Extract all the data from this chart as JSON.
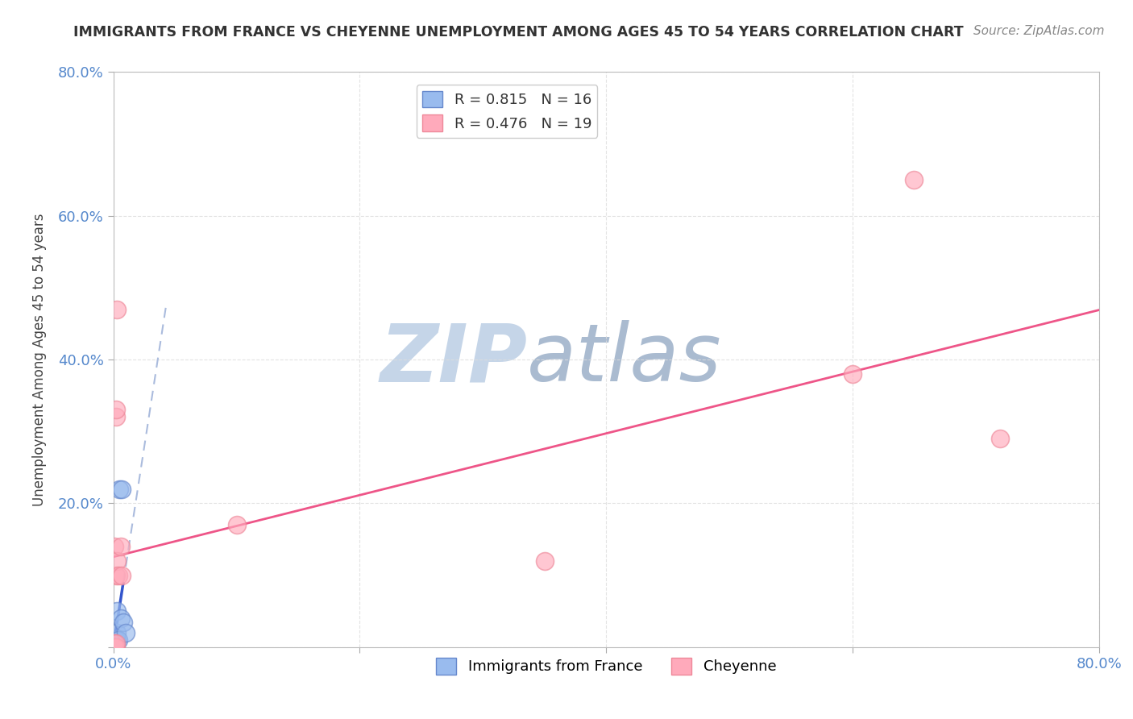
{
  "title": "IMMIGRANTS FROM FRANCE VS CHEYENNE UNEMPLOYMENT AMONG AGES 45 TO 54 YEARS CORRELATION CHART",
  "source": "Source: ZipAtlas.com",
  "ylabel": "Unemployment Among Ages 45 to 54 years",
  "xlim": [
    0.0,
    0.8
  ],
  "ylim": [
    0.0,
    0.8
  ],
  "blue_R": 0.815,
  "blue_N": 16,
  "pink_R": 0.476,
  "pink_N": 19,
  "blue_points": [
    [
      0.001,
      0.0
    ],
    [
      0.001,
      0.0
    ],
    [
      0.001,
      0.0
    ],
    [
      0.001,
      0.005
    ],
    [
      0.002,
      0.005
    ],
    [
      0.002,
      0.01
    ],
    [
      0.002,
      0.01
    ],
    [
      0.003,
      0.01
    ],
    [
      0.003,
      0.02
    ],
    [
      0.003,
      0.05
    ],
    [
      0.004,
      0.01
    ],
    [
      0.005,
      0.22
    ],
    [
      0.006,
      0.04
    ],
    [
      0.007,
      0.22
    ],
    [
      0.008,
      0.035
    ],
    [
      0.01,
      0.02
    ]
  ],
  "pink_points": [
    [
      0.001,
      0.0
    ],
    [
      0.001,
      0.0
    ],
    [
      0.001,
      0.005
    ],
    [
      0.001,
      0.14
    ],
    [
      0.002,
      0.0
    ],
    [
      0.002,
      0.005
    ],
    [
      0.002,
      0.1
    ],
    [
      0.002,
      0.32
    ],
    [
      0.002,
      0.33
    ],
    [
      0.003,
      0.12
    ],
    [
      0.003,
      0.47
    ],
    [
      0.004,
      0.1
    ],
    [
      0.006,
      0.14
    ],
    [
      0.007,
      0.1
    ],
    [
      0.1,
      0.17
    ],
    [
      0.35,
      0.12
    ],
    [
      0.6,
      0.38
    ],
    [
      0.65,
      0.65
    ],
    [
      0.72,
      0.29
    ]
  ],
  "blue_line_color": "#3355CC",
  "pink_line_color": "#EE5588",
  "blue_dot_facecolor": "#99BBEE",
  "blue_dot_edgecolor": "#6688CC",
  "pink_dot_facecolor": "#FFAABB",
  "pink_dot_edgecolor": "#EE8899",
  "blue_dash_color": "#AABBDD",
  "background_color": "#ffffff",
  "grid_color": "#dddddd",
  "watermark_zip_color": "#C5D5E8",
  "watermark_atlas_color": "#AABBD0",
  "tick_label_color": "#5588CC",
  "title_color": "#333333",
  "source_color": "#888888",
  "ylabel_color": "#444444"
}
